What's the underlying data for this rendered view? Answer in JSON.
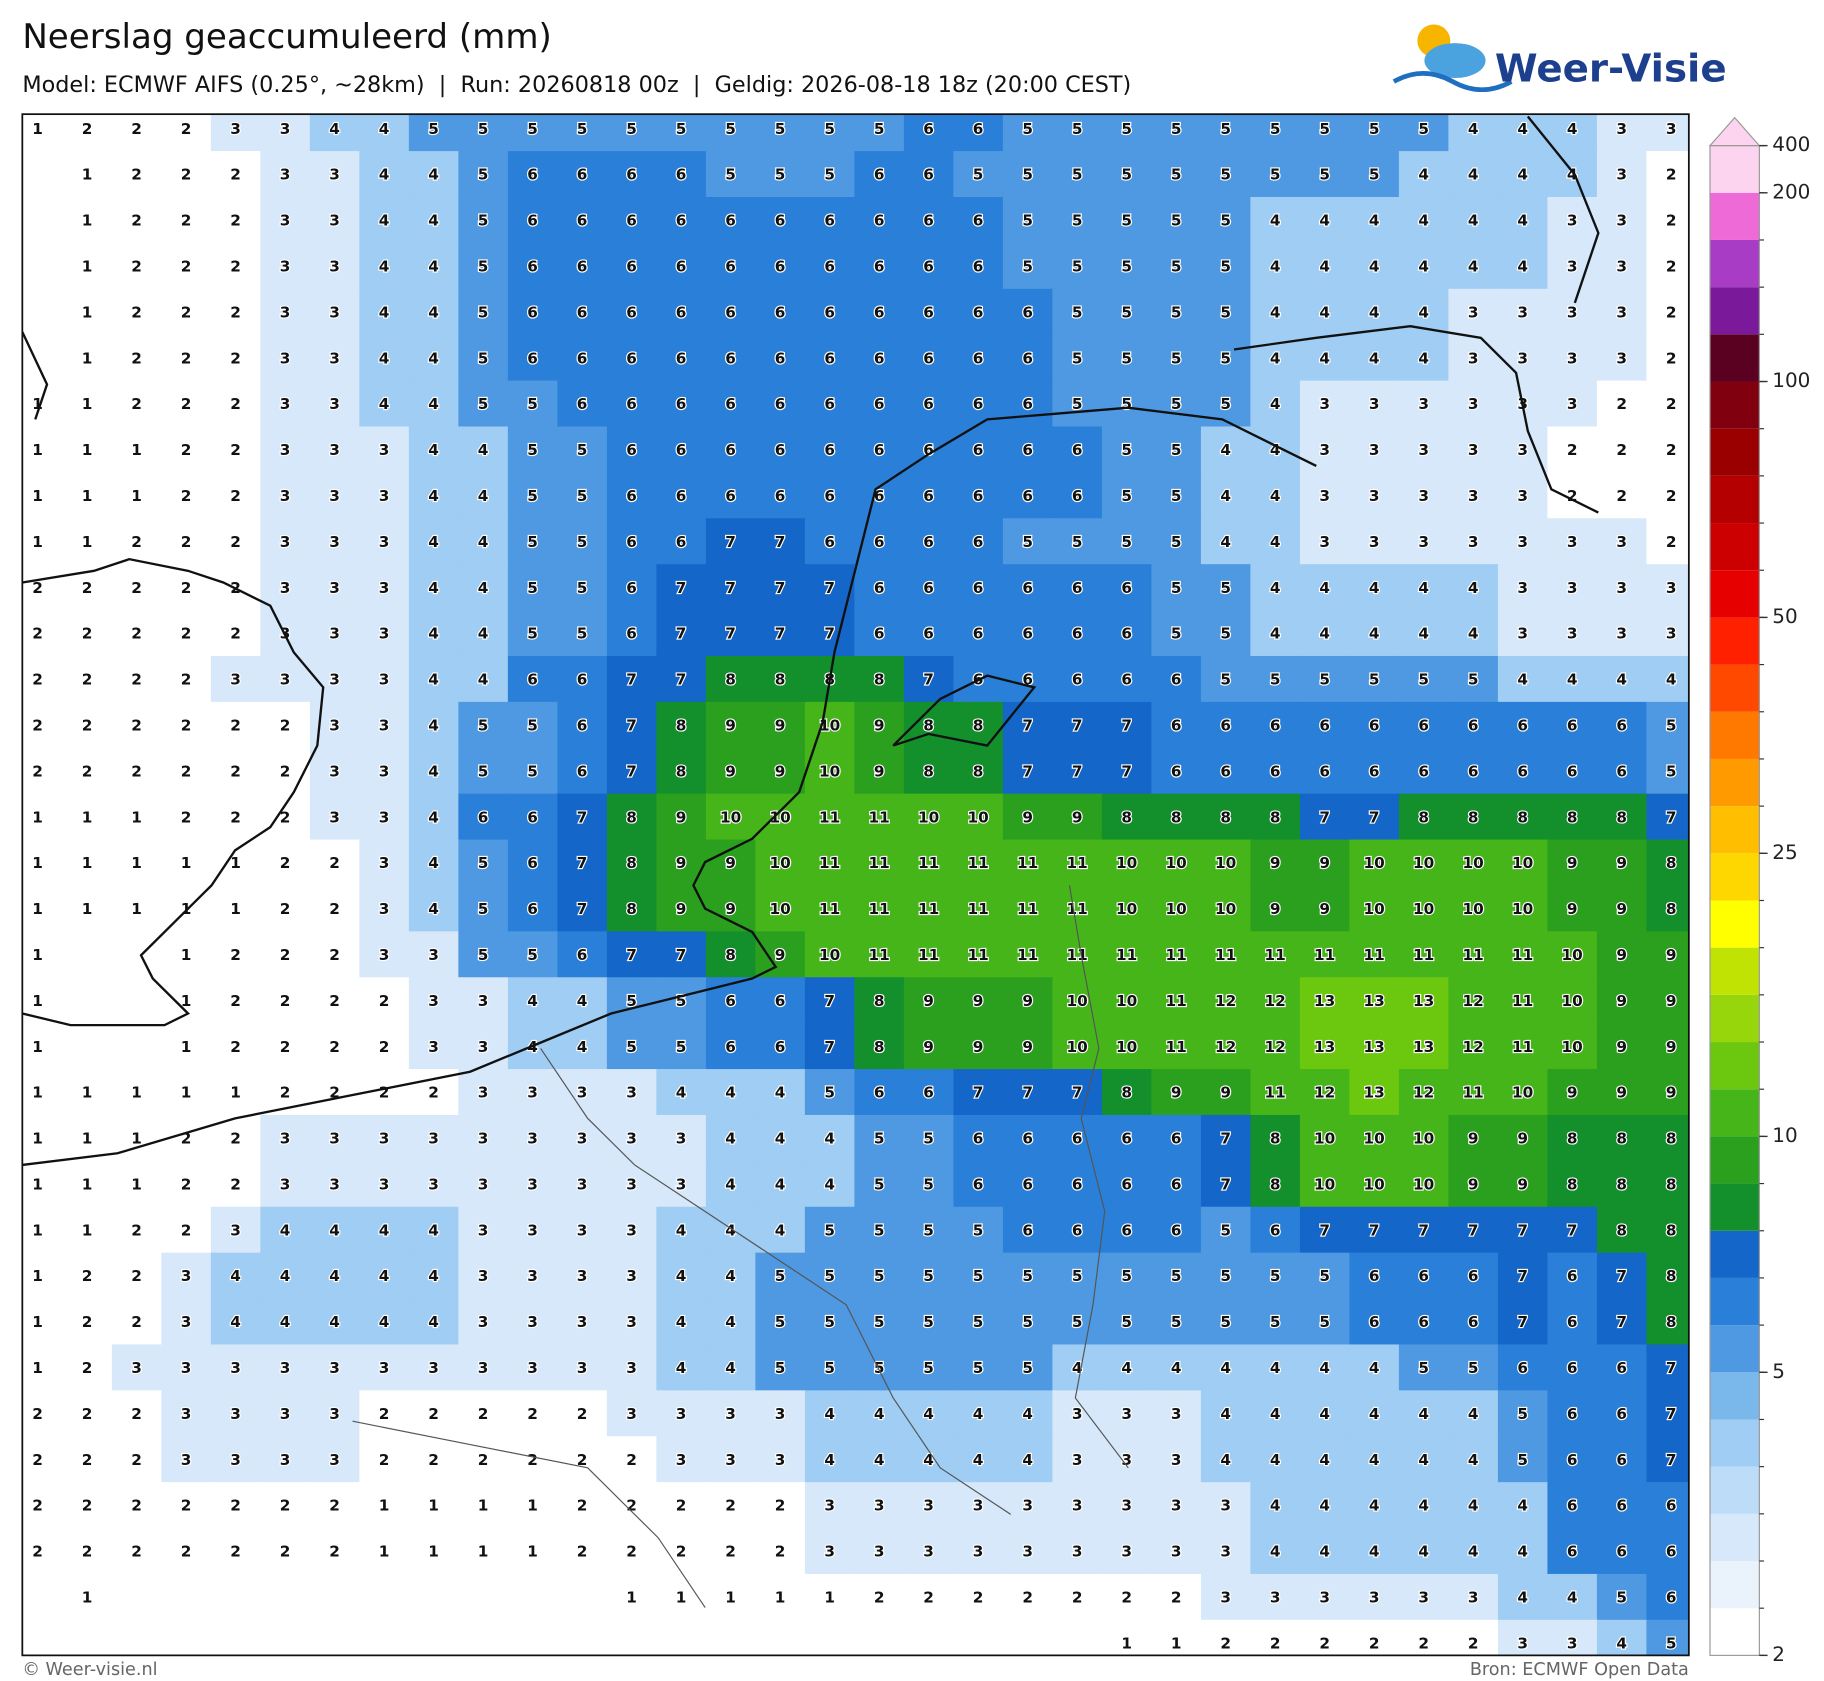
{
  "header": {
    "title": "Neerslag geaccumuleerd (mm)",
    "subtitle": "Model: ECMWF AIFS (0.25°, ~28km)  |  Run: 20260818 00z  |  Geldig: 2026-08-18 18z (20:00 CEST)",
    "logo": "Weer-Visie"
  },
  "map": {
    "values": [
      [
        1,
        2,
        2,
        2,
        3,
        3,
        4,
        4,
        5,
        5,
        5,
        5,
        5,
        5,
        5,
        5,
        5,
        5,
        6,
        6,
        5,
        5,
        5,
        5,
        5,
        5,
        5,
        5,
        5,
        4,
        4,
        4,
        3,
        3
      ],
      [
        null,
        1,
        2,
        2,
        2,
        3,
        3,
        4,
        4,
        5,
        6,
        6,
        6,
        6,
        5,
        5,
        5,
        6,
        6,
        5,
        5,
        5,
        5,
        5,
        5,
        5,
        5,
        5,
        4,
        4,
        4,
        4,
        3,
        2
      ],
      [
        null,
        1,
        2,
        2,
        2,
        3,
        3,
        4,
        4,
        5,
        6,
        6,
        6,
        6,
        6,
        6,
        6,
        6,
        6,
        6,
        5,
        5,
        5,
        5,
        5,
        4,
        4,
        4,
        4,
        4,
        4,
        3,
        3,
        2
      ],
      [
        null,
        1,
        2,
        2,
        2,
        3,
        3,
        4,
        4,
        5,
        6,
        6,
        6,
        6,
        6,
        6,
        6,
        6,
        6,
        6,
        5,
        5,
        5,
        5,
        5,
        4,
        4,
        4,
        4,
        4,
        4,
        3,
        3,
        2
      ],
      [
        null,
        1,
        2,
        2,
        2,
        3,
        3,
        4,
        4,
        5,
        6,
        6,
        6,
        6,
        6,
        6,
        6,
        6,
        6,
        6,
        6,
        5,
        5,
        5,
        5,
        4,
        4,
        4,
        4,
        3,
        3,
        3,
        3,
        2
      ],
      [
        null,
        1,
        2,
        2,
        2,
        3,
        3,
        4,
        4,
        5,
        6,
        6,
        6,
        6,
        6,
        6,
        6,
        6,
        6,
        6,
        6,
        5,
        5,
        5,
        5,
        4,
        4,
        4,
        4,
        3,
        3,
        3,
        3,
        2
      ],
      [
        1,
        1,
        2,
        2,
        2,
        3,
        3,
        4,
        4,
        5,
        5,
        6,
        6,
        6,
        6,
        6,
        6,
        6,
        6,
        6,
        6,
        5,
        5,
        5,
        5,
        4,
        3,
        3,
        3,
        3,
        3,
        3,
        2,
        2
      ],
      [
        1,
        1,
        1,
        2,
        2,
        3,
        3,
        3,
        4,
        4,
        5,
        5,
        6,
        6,
        6,
        6,
        6,
        6,
        6,
        6,
        6,
        6,
        5,
        5,
        4,
        4,
        3,
        3,
        3,
        3,
        3,
        2,
        2,
        2
      ],
      [
        1,
        1,
        1,
        2,
        2,
        3,
        3,
        3,
        4,
        4,
        5,
        5,
        6,
        6,
        6,
        6,
        6,
        6,
        6,
        6,
        6,
        6,
        5,
        5,
        4,
        4,
        3,
        3,
        3,
        3,
        3,
        2,
        2,
        2
      ],
      [
        1,
        1,
        2,
        2,
        2,
        3,
        3,
        3,
        4,
        4,
        5,
        5,
        6,
        6,
        7,
        7,
        6,
        6,
        6,
        6,
        5,
        5,
        5,
        5,
        4,
        4,
        3,
        3,
        3,
        3,
        3,
        3,
        3,
        2
      ],
      [
        2,
        2,
        2,
        2,
        2,
        3,
        3,
        3,
        4,
        4,
        5,
        5,
        6,
        7,
        7,
        7,
        7,
        6,
        6,
        6,
        6,
        6,
        6,
        5,
        5,
        4,
        4,
        4,
        4,
        4,
        3,
        3,
        3,
        3
      ],
      [
        2,
        2,
        2,
        2,
        2,
        3,
        3,
        3,
        4,
        4,
        5,
        5,
        6,
        7,
        7,
        7,
        7,
        6,
        6,
        6,
        6,
        6,
        6,
        5,
        5,
        4,
        4,
        4,
        4,
        4,
        3,
        3,
        3,
        3
      ],
      [
        2,
        2,
        2,
        2,
        3,
        3,
        3,
        3,
        4,
        4,
        6,
        6,
        7,
        7,
        8,
        8,
        8,
        8,
        7,
        6,
        6,
        6,
        6,
        6,
        5,
        5,
        5,
        5,
        5,
        5,
        4,
        4,
        4,
        4
      ],
      [
        2,
        2,
        2,
        2,
        2,
        2,
        3,
        3,
        4,
        5,
        5,
        6,
        7,
        8,
        9,
        9,
        10,
        9,
        8,
        8,
        7,
        7,
        7,
        6,
        6,
        6,
        6,
        6,
        6,
        6,
        6,
        6,
        6,
        5
      ],
      [
        2,
        2,
        2,
        2,
        2,
        2,
        3,
        3,
        4,
        5,
        5,
        6,
        7,
        8,
        9,
        9,
        10,
        9,
        8,
        8,
        7,
        7,
        7,
        6,
        6,
        6,
        6,
        6,
        6,
        6,
        6,
        6,
        6,
        5
      ],
      [
        1,
        1,
        1,
        2,
        2,
        2,
        3,
        3,
        4,
        6,
        6,
        7,
        8,
        9,
        10,
        10,
        11,
        11,
        10,
        10,
        9,
        9,
        8,
        8,
        8,
        8,
        7,
        7,
        8,
        8,
        8,
        8,
        8,
        7
      ],
      [
        1,
        1,
        1,
        1,
        1,
        2,
        2,
        3,
        4,
        5,
        6,
        7,
        8,
        9,
        9,
        10,
        11,
        11,
        11,
        11,
        11,
        11,
        10,
        10,
        10,
        9,
        9,
        10,
        10,
        10,
        10,
        9,
        9,
        8
      ],
      [
        1,
        1,
        1,
        1,
        1,
        2,
        2,
        3,
        4,
        5,
        6,
        7,
        8,
        9,
        9,
        10,
        11,
        11,
        11,
        11,
        11,
        11,
        10,
        10,
        10,
        9,
        9,
        10,
        10,
        10,
        10,
        9,
        9,
        8
      ],
      [
        1,
        null,
        null,
        1,
        2,
        2,
        2,
        3,
        3,
        5,
        5,
        6,
        7,
        7,
        8,
        9,
        10,
        11,
        11,
        11,
        11,
        11,
        11,
        11,
        11,
        11,
        11,
        11,
        11,
        11,
        11,
        10,
        9,
        9
      ],
      [
        1,
        null,
        null,
        1,
        2,
        2,
        2,
        2,
        3,
        3,
        4,
        4,
        5,
        5,
        6,
        6,
        7,
        8,
        9,
        9,
        9,
        10,
        10,
        11,
        12,
        12,
        13,
        13,
        13,
        12,
        11,
        10,
        9,
        9
      ],
      [
        1,
        null,
        null,
        1,
        2,
        2,
        2,
        2,
        3,
        3,
        4,
        4,
        5,
        5,
        6,
        6,
        7,
        8,
        9,
        9,
        9,
        10,
        10,
        11,
        12,
        12,
        13,
        13,
        13,
        12,
        11,
        10,
        9,
        9
      ],
      [
        1,
        1,
        1,
        1,
        1,
        2,
        2,
        2,
        2,
        3,
        3,
        3,
        3,
        4,
        4,
        4,
        5,
        6,
        6,
        7,
        7,
        7,
        8,
        9,
        9,
        11,
        12,
        13,
        12,
        11,
        10,
        9,
        9,
        9
      ],
      [
        1,
        1,
        1,
        2,
        2,
        3,
        3,
        3,
        3,
        3,
        3,
        3,
        3,
        3,
        4,
        4,
        4,
        5,
        5,
        6,
        6,
        6,
        6,
        6,
        7,
        8,
        10,
        10,
        10,
        9,
        9,
        8,
        8,
        8
      ],
      [
        1,
        1,
        1,
        2,
        2,
        3,
        3,
        3,
        3,
        3,
        3,
        3,
        3,
        3,
        4,
        4,
        4,
        5,
        5,
        6,
        6,
        6,
        6,
        6,
        7,
        8,
        10,
        10,
        10,
        9,
        9,
        8,
        8,
        8
      ],
      [
        1,
        1,
        2,
        2,
        3,
        4,
        4,
        4,
        4,
        3,
        3,
        3,
        3,
        4,
        4,
        4,
        5,
        5,
        5,
        5,
        6,
        6,
        6,
        6,
        5,
        6,
        7,
        7,
        7,
        7,
        7,
        7,
        8,
        8
      ],
      [
        1,
        2,
        2,
        3,
        4,
        4,
        4,
        4,
        4,
        3,
        3,
        3,
        3,
        4,
        4,
        5,
        5,
        5,
        5,
        5,
        5,
        5,
        5,
        5,
        5,
        5,
        5,
        6,
        6,
        6,
        7,
        6,
        7,
        8
      ],
      [
        1,
        2,
        2,
        3,
        4,
        4,
        4,
        4,
        4,
        3,
        3,
        3,
        3,
        4,
        4,
        5,
        5,
        5,
        5,
        5,
        5,
        5,
        5,
        5,
        5,
        5,
        5,
        6,
        6,
        6,
        7,
        6,
        7,
        8
      ],
      [
        1,
        2,
        3,
        3,
        3,
        3,
        3,
        3,
        3,
        3,
        3,
        3,
        3,
        4,
        4,
        5,
        5,
        5,
        5,
        5,
        5,
        4,
        4,
        4,
        4,
        4,
        4,
        4,
        5,
        5,
        6,
        6,
        6,
        7
      ],
      [
        2,
        2,
        2,
        3,
        3,
        3,
        3,
        2,
        2,
        2,
        2,
        2,
        3,
        3,
        3,
        3,
        4,
        4,
        4,
        4,
        4,
        3,
        3,
        3,
        4,
        4,
        4,
        4,
        4,
        4,
        5,
        6,
        6,
        7
      ],
      [
        2,
        2,
        2,
        3,
        3,
        3,
        3,
        2,
        2,
        2,
        2,
        2,
        2,
        3,
        3,
        3,
        4,
        4,
        4,
        4,
        4,
        3,
        3,
        3,
        4,
        4,
        4,
        4,
        4,
        4,
        5,
        6,
        6,
        7
      ],
      [
        2,
        2,
        2,
        2,
        2,
        2,
        2,
        1,
        1,
        1,
        1,
        2,
        2,
        2,
        2,
        2,
        3,
        3,
        3,
        3,
        3,
        3,
        3,
        3,
        3,
        4,
        4,
        4,
        4,
        4,
        4,
        6,
        6,
        6
      ],
      [
        2,
        2,
        2,
        2,
        2,
        2,
        2,
        1,
        1,
        1,
        1,
        2,
        2,
        2,
        2,
        2,
        3,
        3,
        3,
        3,
        3,
        3,
        3,
        3,
        3,
        4,
        4,
        4,
        4,
        4,
        4,
        6,
        6,
        6
      ],
      [
        null,
        1,
        null,
        null,
        null,
        null,
        null,
        null,
        null,
        null,
        null,
        null,
        1,
        1,
        1,
        1,
        1,
        2,
        2,
        2,
        2,
        2,
        2,
        2,
        3,
        3,
        3,
        3,
        3,
        3,
        4,
        4,
        5,
        6
      ],
      [
        null,
        null,
        null,
        null,
        null,
        null,
        null,
        null,
        null,
        null,
        null,
        null,
        null,
        null,
        null,
        null,
        null,
        null,
        null,
        null,
        null,
        null,
        1,
        1,
        2,
        2,
        2,
        2,
        2,
        2,
        3,
        3,
        4,
        5
      ]
    ]
  },
  "colorbar": {
    "bounds": [
      2,
      2.5,
      3,
      3.5,
      4,
      4.5,
      5,
      6,
      7,
      8,
      9,
      10,
      12.5,
      15,
      17.5,
      20,
      22.5,
      25,
      30,
      35,
      40,
      45,
      50,
      60,
      70,
      80,
      90,
      100,
      125,
      150,
      175,
      200,
      400
    ],
    "colors": [
      "#ffffff",
      "#eaf3fc",
      "#d6e8f9",
      "#bcdcf7",
      "#9fcdf3",
      "#7ab8ec",
      "#4e99e2",
      "#2a80d8",
      "#1566c9",
      "#13902c",
      "#2aa01e",
      "#46b51a",
      "#6cc80f",
      "#96d60a",
      "#c0e303",
      "#ffff00",
      "#ffd700",
      "#ffbf00",
      "#ff9a00",
      "#ff7800",
      "#ff4800",
      "#ff2000",
      "#e60000",
      "#cc0000",
      "#b40000",
      "#9a0000",
      "#800010",
      "#5a0020",
      "#7a1a9a",
      "#a83cc4",
      "#ee6ad6",
      "#fcd4f0"
    ],
    "ticks": [
      2,
      5,
      10,
      25,
      50,
      100,
      200,
      400
    ]
  },
  "footer": {
    "left": "© Weer-visie.nl",
    "right": "Bron: ECMWF Open Data"
  }
}
